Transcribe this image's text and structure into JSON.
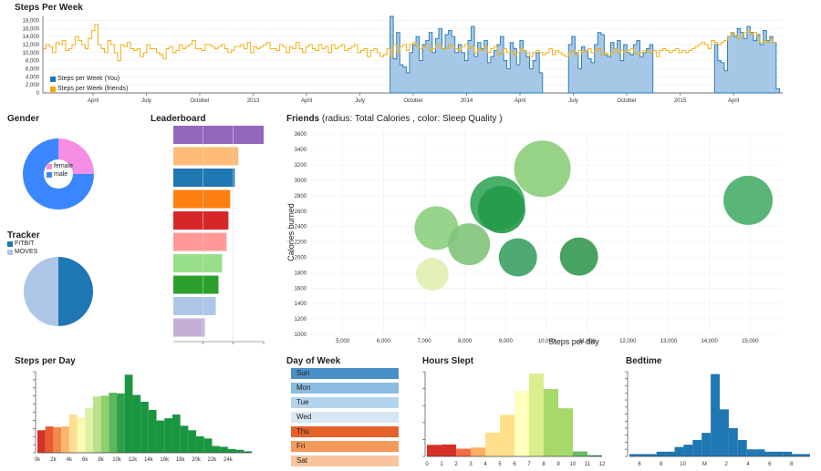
{
  "titles": {
    "steps_week": "Steps Per Week",
    "gender": "Gender",
    "leaderboard": "Leaderboard",
    "friends": "Friends",
    "friends_sub": "(radius: Total Calories , color: Sleep Quality )",
    "tracker": "Tracker",
    "steps_day": "Steps per Day",
    "day_of_week": "Day of Week",
    "hours_slept": "Hours Slept",
    "bedtime": "Bedtime"
  },
  "colors": {
    "you": "#1f77b4",
    "you_fill": "#a6c8e6",
    "friends_line": "#f2a900"
  },
  "chart_data": [
    {
      "id": "steps_week",
      "type": "area",
      "title": "Steps Per Week",
      "x_ticks": [
        "April",
        "July",
        "October",
        "2013",
        "April",
        "July",
        "October",
        "2014",
        "April",
        "July",
        "October",
        "2015",
        "April"
      ],
      "y_ticks": [
        0,
        2000,
        4000,
        6000,
        8000,
        10000,
        12000,
        14000,
        16000,
        18000
      ],
      "y_tick_labels": [
        "0",
        "2,000",
        "4,000",
        "6,000",
        "8,000",
        "10,000",
        "12,000",
        "14,000",
        "16,000",
        "18,000"
      ],
      "ylim": [
        0,
        19000
      ],
      "legend": [
        "Steps per Week (You)",
        "Steps per Week (friends)"
      ],
      "legend_position": "bottom-left",
      "series": [
        {
          "name": "Steps per Week (You)",
          "segments": [
            {
              "start_week": 107,
              "values": [
                19000,
                8500,
                15000,
                7000,
                6500,
                5000,
                10000,
                12000,
                14000,
                8000,
                12000,
                13000,
                15000,
                10000,
                13500,
                16000,
                11000,
                14500,
                15500,
                14000,
                10000,
                12000,
                10000,
                8000,
                13000,
                16500,
                9000,
                12500,
                11000,
                13000,
                7500,
                9000,
                10500,
                12000,
                14000,
                8000,
                6000,
                12500,
                11000,
                7000,
                13000,
                10500,
                9000,
                6000,
                8000,
                10000,
                5000
              ]
            },
            {
              "start_week": 162,
              "values": [
                12000,
                14000,
                10000,
                6000,
                11500,
                10500,
                8500,
                7500,
                12000,
                15000,
                14500,
                9500,
                9000,
                12500,
                11000,
                13000,
                8000,
                12000,
                10000,
                9500,
                12000,
                13000,
                9000,
                10000,
                11000,
                12000
              ]
            },
            {
              "start_week": 207,
              "values": [
                12000,
                8000,
                7500,
                5500,
                14000,
                15000,
                14000,
                16000,
                15000,
                13500,
                16500,
                15000,
                13000,
                14500,
                12000,
                15500,
                13000,
                14000,
                12500,
                1000
              ]
            }
          ]
        },
        {
          "name": "Steps per Week (friends)",
          "start_week": 0,
          "values": [
            11000,
            12000,
            11500,
            10000,
            12500,
            12000,
            13000,
            10500,
            11000,
            12000,
            14000,
            13000,
            12000,
            11000,
            13500,
            15500,
            17000,
            12000,
            11000,
            10000,
            13000,
            12000,
            10000,
            8000,
            12000,
            11500,
            12500,
            11000,
            10500,
            11000,
            9000,
            10000,
            12000,
            11000,
            11000,
            10000,
            9500,
            8500,
            11000,
            11500,
            10000,
            10500,
            12000,
            11000,
            11500,
            12000,
            13000,
            11000,
            11000,
            10500,
            12000,
            12000,
            11500,
            11000,
            11500,
            12000,
            11000,
            10000,
            10500,
            11500,
            11500,
            12000,
            11000,
            12500,
            10000,
            11500,
            11000,
            11500,
            12000,
            12500,
            11000,
            11000,
            10500,
            12000,
            11500,
            10000,
            11500,
            11000,
            12500,
            11000,
            10000,
            11500,
            12000,
            11000,
            10500,
            12000,
            11000,
            11500,
            10000,
            12000,
            11000,
            11500,
            12000,
            10500,
            11000,
            11500,
            12000,
            10000,
            10500,
            11000,
            9000,
            10500,
            11000,
            10000,
            9000,
            9500,
            11000,
            9000,
            12000,
            10000,
            11500,
            12000,
            10500,
            12000,
            12500,
            11500,
            11000,
            11500,
            12000,
            10500,
            11000,
            12000,
            11500,
            11000,
            11000,
            12000,
            11500,
            11000,
            10500,
            11500,
            12000,
            11000,
            11500,
            10000,
            11000,
            10500,
            11500,
            10000,
            11000,
            11500,
            9500,
            10000,
            11000,
            10000,
            10500,
            9500,
            10000,
            11000,
            10500,
            10000,
            9000,
            10000,
            10500,
            10000,
            9500,
            10000,
            11000,
            9500,
            10500,
            10000,
            9500,
            9000,
            10000,
            10500,
            9500,
            10500,
            10000,
            10500,
            11000,
            10000,
            10500,
            11000,
            9500,
            10000,
            9500,
            10000,
            11000,
            10000,
            10500,
            10000,
            10500,
            11000,
            10000,
            9500,
            10000,
            10500,
            10500,
            10000,
            10500,
            9000,
            10500,
            11000,
            10500,
            10000,
            10500,
            11000,
            10000,
            10500,
            10000,
            10500,
            11000,
            11500,
            12000,
            12500,
            12000,
            11000,
            13000,
            12500,
            12000,
            12500,
            13000,
            14000,
            15000,
            14500,
            13500,
            14000,
            15000,
            15500,
            14500,
            15000,
            14000,
            12500,
            13000,
            12500,
            13500,
            12500
          ]
        }
      ]
    },
    {
      "id": "gender",
      "type": "pie",
      "title": "Gender",
      "categories": [
        "female",
        "male"
      ],
      "values": [
        25,
        75
      ],
      "colors": [
        "#f58ee4",
        "#3a86ff"
      ],
      "donut": true
    },
    {
      "id": "leaderboard",
      "type": "bar",
      "title": "Leaderboard",
      "orientation": "horizontal",
      "values": [
        100,
        72,
        68,
        63,
        61,
        59,
        54,
        50,
        47,
        35
      ],
      "colors": [
        "#9467bd",
        "#ffbb78",
        "#1f77b4",
        "#ff7f0e",
        "#d62728",
        "#ff9896",
        "#98df8a",
        "#2ca02c",
        "#aec7e8",
        "#c5b0d5"
      ]
    },
    {
      "id": "friends",
      "type": "scatter",
      "title": "Friends",
      "xlabel": "Steps per day",
      "ylabel": "Calories burned",
      "x_ticks": [
        5000,
        6000,
        7000,
        8000,
        9000,
        10000,
        11000,
        12000,
        13000,
        14000,
        15000
      ],
      "x_tick_labels": [
        "5,000",
        "6,000",
        "7,000",
        "8,000",
        "9,000",
        "10,000",
        "11,000",
        "12,000",
        "13,000",
        "14,000",
        "15,000"
      ],
      "y_ticks": [
        1000,
        1200,
        1400,
        1600,
        1800,
        2000,
        2200,
        2400,
        2600,
        2800,
        3000,
        3200,
        3400,
        3600
      ],
      "xlim": [
        4200,
        15800
      ],
      "ylim": [
        1000,
        3650
      ],
      "points": [
        {
          "x": 9900,
          "y": 3150,
          "r": 31,
          "color": "#8cce79"
        },
        {
          "x": 8800,
          "y": 2700,
          "r": 30,
          "color": "#35a65a"
        },
        {
          "x": 8900,
          "y": 2620,
          "r": 26,
          "color": "#259a4a"
        },
        {
          "x": 14950,
          "y": 2740,
          "r": 27,
          "color": "#48ad6a"
        },
        {
          "x": 7300,
          "y": 2380,
          "r": 24,
          "color": "#8ccf80"
        },
        {
          "x": 8100,
          "y": 2170,
          "r": 23,
          "color": "#7fc47a"
        },
        {
          "x": 9300,
          "y": 2000,
          "r": 21,
          "color": "#3ba163"
        },
        {
          "x": 10800,
          "y": 2010,
          "r": 21,
          "color": "#35994f"
        },
        {
          "x": 7200,
          "y": 1780,
          "r": 18,
          "color": "#dff0b0"
        }
      ]
    },
    {
      "id": "tracker",
      "type": "pie",
      "title": "Tracker",
      "categories": [
        "FITBIT",
        "MOVES"
      ],
      "values": [
        50,
        50
      ],
      "colors": [
        "#1f77b4",
        "#aec7e8"
      ],
      "legend_position": "top-left"
    },
    {
      "id": "steps_day",
      "type": "bar",
      "title": "Steps per Day",
      "x_ticks": [
        0,
        2,
        4,
        6,
        8,
        10,
        12,
        14,
        16,
        18,
        20,
        22,
        24
      ],
      "x_tick_labels": [
        "0k",
        "2k",
        "4k",
        "6k",
        "8k",
        "10k",
        "12k",
        "14k",
        "16k",
        "18k",
        "20k",
        "22k",
        "24k"
      ],
      "bin_width": 1,
      "values": [
        150,
        175,
        170,
        175,
        255,
        235,
        300,
        375,
        380,
        400,
        395,
        520,
        385,
        340,
        285,
        215,
        230,
        255,
        180,
        150,
        110,
        95,
        45,
        40,
        25,
        20,
        10
      ],
      "ylim": [
        0,
        540
      ],
      "colors": [
        "#d73027",
        "#e75a33",
        "#f4874a",
        "#fcb56a",
        "#fdde93",
        "#f8fbb0",
        "#dff1a6",
        "#b9e28c",
        "#8fcf6e",
        "#5cb85c",
        "#2f9e49",
        "#1a9641",
        "#1a9641",
        "#1a9641",
        "#1a9641",
        "#1a9641",
        "#1a9641",
        "#1a9641",
        "#1a9641",
        "#1a9641",
        "#1a9641",
        "#1a9641",
        "#1a9641",
        "#1a9641",
        "#1a9641",
        "#1a9641",
        "#1a9641"
      ]
    },
    {
      "id": "day_of_week",
      "type": "bar",
      "title": "Day of Week",
      "orientation": "horizontal",
      "categories": [
        "Sun",
        "Mon",
        "Tue",
        "Wed",
        "Thu",
        "Fri",
        "Sat"
      ],
      "values": [
        100,
        100,
        100,
        100,
        100,
        100,
        100
      ],
      "colors": [
        "#4a90c8",
        "#8bbbe0",
        "#b4d3ec",
        "#d8e7f4",
        "#e5622a",
        "#f39a5b",
        "#f8c49d"
      ]
    },
    {
      "id": "hours_slept",
      "type": "bar",
      "title": "Hours Slept",
      "x_ticks": [
        0,
        1,
        2,
        3,
        4,
        5,
        6,
        7,
        8,
        9,
        10,
        11,
        12
      ],
      "bin_width": 1,
      "x": [
        0,
        1,
        2,
        3,
        4,
        5,
        6,
        7,
        8,
        9,
        10,
        11
      ],
      "values": [
        3,
        3.1,
        2,
        2.3,
        6.2,
        10.8,
        17,
        21.5,
        17.5,
        12.5,
        1.3,
        0.3
      ],
      "ylim": [
        0,
        22
      ],
      "colors": [
        "#d73027",
        "#d73027",
        "#f46d43",
        "#fdae61",
        "#fee08b",
        "#fee08b",
        "#ffffbf",
        "#d9ef8b",
        "#a6d96a",
        "#a6d96a",
        "#66bd63",
        "#1a9850"
      ]
    },
    {
      "id": "bedtime",
      "type": "bar",
      "title": "Bedtime",
      "x_tick_labels": [
        "6",
        "8",
        "10",
        "M",
        "2",
        "4",
        "6",
        "8"
      ],
      "values": [
        1,
        1,
        1,
        2,
        2,
        4,
        5,
        7,
        10,
        35,
        20,
        12,
        7,
        3,
        3,
        2,
        2,
        2,
        1,
        1
      ],
      "ylim": [
        0,
        36
      ],
      "color": "#1f77b4"
    }
  ]
}
